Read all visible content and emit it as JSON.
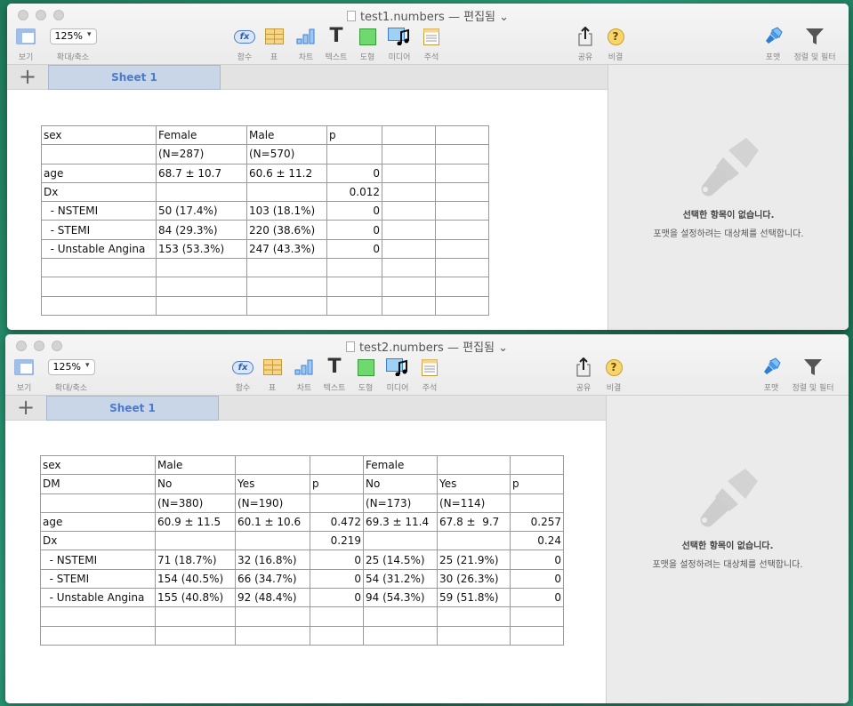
{
  "common": {
    "view": "보기",
    "zoom": "125%",
    "zoom_label": "확대/축소",
    "function": "함수",
    "table": "표",
    "chart": "차트",
    "text": "텍스트",
    "shape": "도형",
    "media": "미디어",
    "comment": "주석",
    "share": "공유",
    "tips": "비결",
    "format": "포맷",
    "sort_filter": "정렬 및 필터",
    "fx": "fx",
    "add_sheet": "+",
    "sheet": "Sheet 1",
    "no_selection": "선택한 항목이 없습니다.",
    "no_selection_hint": "포맷을 설정하려는 대상체를 선택합니다."
  },
  "windows": [
    {
      "title": "test1.numbers",
      "status": "— 편집됨 ⌄",
      "table": [
        [
          "sex",
          "Female",
          "Male",
          "p",
          "",
          ""
        ],
        [
          "",
          "(N=287)",
          "(N=570)",
          "",
          "",
          ""
        ],
        [
          "age",
          "68.7 ± 10.7",
          "60.6 ± 11.2",
          "0",
          "",
          ""
        ],
        [
          "Dx",
          "",
          "",
          "0.012",
          "",
          ""
        ],
        [
          "  - NSTEMI",
          "50 (17.4%)",
          "103 (18.1%)",
          "0",
          "",
          ""
        ],
        [
          "  - STEMI",
          "84 (29.3%)",
          "220 (38.6%)",
          "0",
          "",
          ""
        ],
        [
          "  - Unstable Angina",
          "153 (53.3%)",
          "247 (43.3%)",
          "0",
          "",
          ""
        ],
        [
          "",
          "",
          "",
          "",
          "",
          ""
        ],
        [
          "",
          "",
          "",
          "",
          "",
          ""
        ],
        [
          "",
          "",
          "",
          "",
          "",
          ""
        ]
      ]
    },
    {
      "title": "test2.numbers",
      "status": "— 편집됨 ⌄",
      "table": [
        [
          "sex",
          "Male",
          "",
          "",
          "Female",
          "",
          ""
        ],
        [
          "DM",
          "No",
          "Yes",
          "p",
          "No",
          "Yes",
          "p"
        ],
        [
          "",
          "(N=380)",
          "(N=190)",
          "",
          "(N=173)",
          "(N=114)",
          ""
        ],
        [
          "age",
          "60.9 ± 11.5",
          "60.1 ± 10.6",
          "0.472",
          "69.3 ± 11.4",
          "67.8 ±  9.7",
          "0.257"
        ],
        [
          "Dx",
          "",
          "",
          "0.219",
          "",
          "",
          "0.24"
        ],
        [
          "  - NSTEMI",
          "71 (18.7%)",
          "32 (16.8%)",
          "0",
          "25 (14.5%)",
          "25 (21.9%)",
          "0"
        ],
        [
          "  - STEMI",
          "154 (40.5%)",
          "66 (34.7%)",
          "0",
          "54 (31.2%)",
          "30 (26.3%)",
          "0"
        ],
        [
          "  - Unstable Angina",
          "155 (40.8%)",
          "92 (48.4%)",
          "0",
          "94 (54.3%)",
          "59 (51.8%)",
          "0"
        ],
        [
          "",
          "",
          "",
          "",
          "",
          "",
          ""
        ],
        [
          "",
          "",
          "",
          "",
          "",
          "",
          ""
        ]
      ]
    }
  ]
}
